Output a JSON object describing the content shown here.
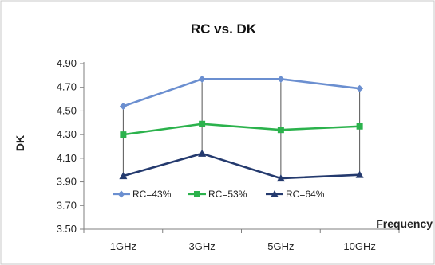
{
  "chart_data": {
    "type": "line",
    "title": "RC vs. DK",
    "xlabel": "Frequency",
    "ylabel": "DK",
    "categories": [
      "1GHz",
      "3GHz",
      "5GHz",
      "10GHz"
    ],
    "ylim": [
      3.5,
      4.9
    ],
    "yticks": [
      "3.50",
      "3.70",
      "3.90",
      "4.10",
      "4.30",
      "4.50",
      "4.70",
      "4.90"
    ],
    "grid": false,
    "hi_lo_lines": true,
    "legend_position": "bottom, inside plot",
    "series": [
      {
        "name": "RC=43%",
        "values": [
          4.54,
          4.77,
          4.77,
          4.69
        ],
        "color": "#6b8fd0",
        "marker": "diamond"
      },
      {
        "name": "RC=53%",
        "values": [
          4.3,
          4.39,
          4.34,
          4.37
        ],
        "color": "#2bb24c",
        "marker": "square"
      },
      {
        "name": "RC=64%",
        "values": [
          3.95,
          4.14,
          3.93,
          3.96
        ],
        "color": "#243a6e",
        "marker": "triangle"
      }
    ]
  }
}
